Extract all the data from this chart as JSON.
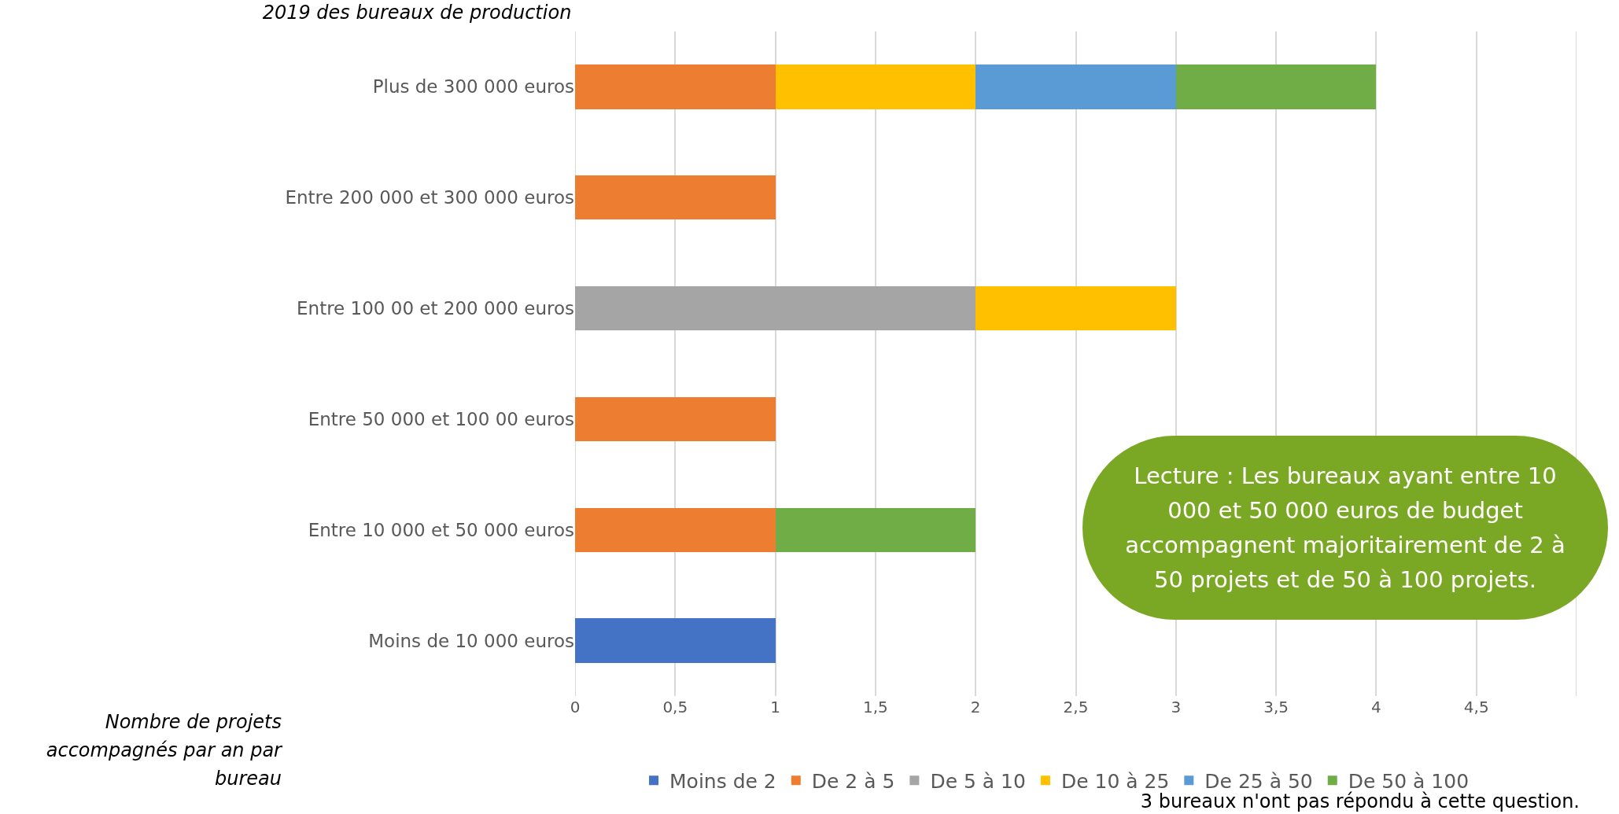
{
  "chart_data": {
    "type": "bar",
    "orientation": "horizontal",
    "stacked": true,
    "title": "2019 des bureaux de production",
    "legend_title": "Nombre de projets accompagnés par an par bureau",
    "categories": [
      "Plus de 300 000 euros",
      "Entre 200 000 et 300 000 euros",
      "Entre 100 00 et 200 000 euros",
      "Entre 50 000 et 100 00 euros",
      "Entre 10 000 et 50 000 euros",
      "Moins de 10 000 euros"
    ],
    "series": [
      {
        "name": "Moins de 2",
        "color": "#4472c4",
        "values": [
          null,
          null,
          null,
          null,
          null,
          1
        ]
      },
      {
        "name": "De 2 à 5",
        "color": "#ed7d31",
        "values": [
          1,
          1,
          null,
          1,
          1,
          null
        ]
      },
      {
        "name": "De 5 à 10",
        "color": "#a5a5a5",
        "values": [
          null,
          null,
          2,
          null,
          null,
          null
        ]
      },
      {
        "name": "De 10 à 25",
        "color": "#ffc000",
        "values": [
          1,
          null,
          1,
          null,
          null,
          null
        ]
      },
      {
        "name": "De 25 à 50",
        "color": "#5b9bd5",
        "values": [
          1,
          null,
          null,
          null,
          null,
          null
        ]
      },
      {
        "name": "De 50 à 100",
        "color": "#70ad47",
        "values": [
          1,
          null,
          null,
          null,
          1,
          null
        ]
      }
    ],
    "xlim": [
      0,
      5
    ],
    "xticks": [
      0,
      {
        "value": 0.5,
        "label": "0,5"
      },
      1,
      {
        "value": 1.5,
        "label": "1,5"
      },
      2,
      {
        "value": 2.5,
        "label": "2,5"
      },
      3,
      {
        "value": 3.5,
        "label": "3,5"
      },
      4,
      {
        "value": 4.5,
        "label": "4,5"
      },
      {
        "value": 5,
        "label": null
      }
    ],
    "grid": "x",
    "legend": "bottom",
    "annotations": [
      "Lecture : Les bureaux ayant entre 10 000 et 50 000 euros de budget accompagnent majoritairement de 2 à 50 projets et de 50 à 100 projets.",
      "3 bureaux n'ont pas répondu à cette question."
    ]
  }
}
